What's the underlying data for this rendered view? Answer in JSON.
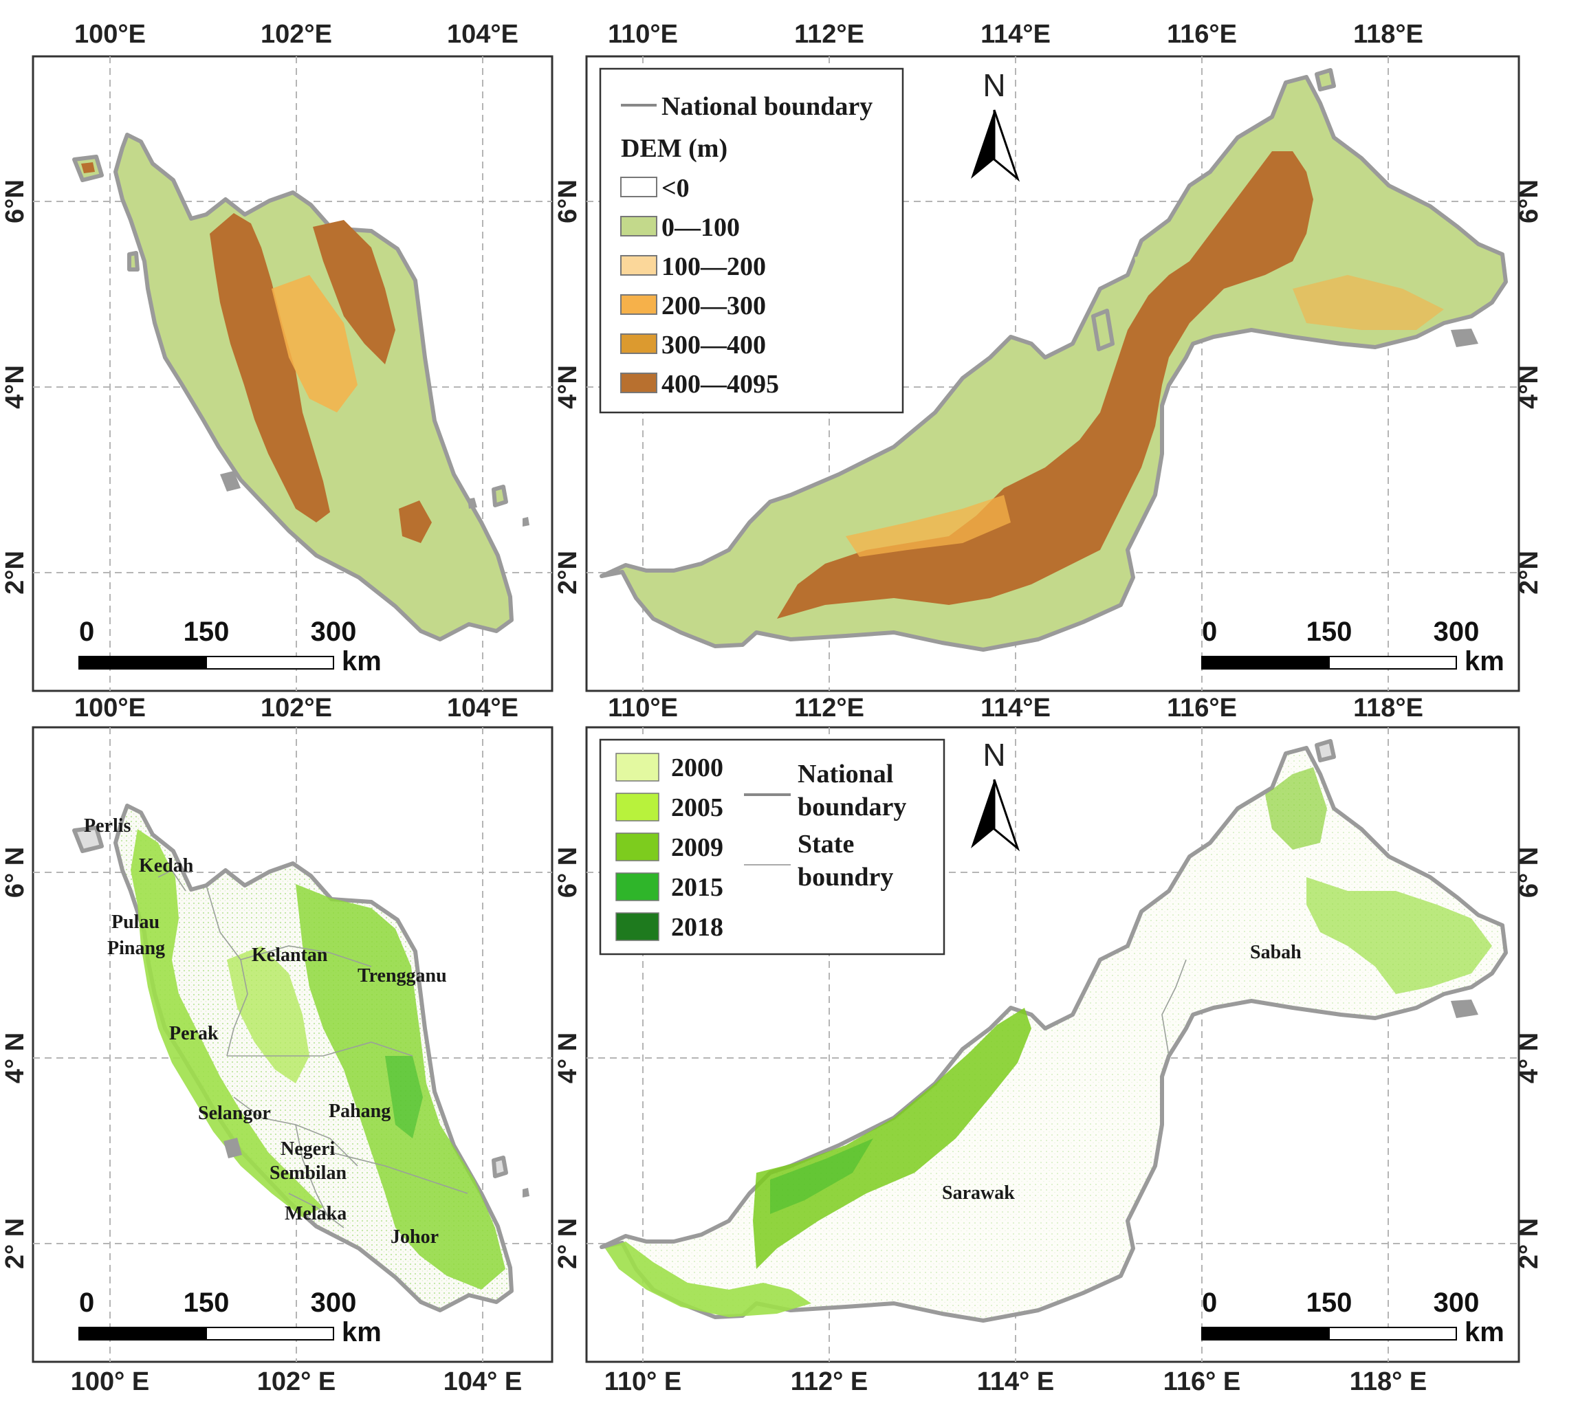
{
  "panels": {
    "top_left": {
      "x_ticks": [
        "100°E",
        "102°E",
        "104°E"
      ],
      "y_ticks_left": [
        "6°N",
        "4°N",
        "2°N"
      ],
      "scale": {
        "labels": [
          "0",
          "150",
          "300"
        ],
        "unit": "km"
      }
    },
    "top_right": {
      "x_ticks_top": [
        "110°E",
        "112°E",
        "114°E",
        "116°E",
        "118°E"
      ],
      "x_ticks_bottom": [
        "110°E",
        "112°E",
        "114°E",
        "116°E",
        "118°E"
      ],
      "y_ticks_left": [
        "6°N",
        "4°N",
        "2°N"
      ],
      "y_ticks_right": [
        "6°N",
        "4°N",
        "2°N"
      ],
      "north": "N",
      "scale": {
        "labels": [
          "0",
          "150",
          "300"
        ],
        "unit": "km"
      },
      "legend": {
        "boundary_label": "National boundary",
        "dem_title": "DEM (m)",
        "classes": [
          {
            "label": "<0",
            "color": "#ffffff"
          },
          {
            "label": "0—100",
            "color": "#c3d98b"
          },
          {
            "label": "100—200",
            "color": "#fbd79a"
          },
          {
            "label": "200—300",
            "color": "#f6b14a"
          },
          {
            "label": "300—400",
            "color": "#dc9a2f"
          },
          {
            "label": "400—4095",
            "color": "#b8702f"
          }
        ]
      }
    },
    "bottom_left": {
      "x_ticks": [
        "100° E",
        "102° E",
        "104° E"
      ],
      "y_ticks_left": [
        "6° N",
        "4° N",
        "2° N"
      ],
      "scale": {
        "labels": [
          "0",
          "150",
          "300"
        ],
        "unit": "km"
      },
      "states": [
        "Perlis",
        "Kedah",
        "Pulau",
        "Pinang",
        "Kelantan",
        "Trengganu",
        "Perak",
        "Selangor",
        "Pahang",
        "Negeri",
        "Sembilan",
        "Melaka",
        "Johor"
      ]
    },
    "bottom_right": {
      "x_ticks": [
        "110° E",
        "112° E",
        "114° E",
        "116° E",
        "118° E"
      ],
      "y_ticks_left": [
        "6° N",
        "4° N",
        "2° N"
      ],
      "y_ticks_right": [
        "6° N",
        "4° N",
        "2° N"
      ],
      "north": "N",
      "scale": {
        "labels": [
          "0",
          "150",
          "300"
        ],
        "unit": "km"
      },
      "regions": [
        "Sabah",
        "Sarawak"
      ],
      "legend": {
        "years": [
          {
            "label": "2000",
            "color": "#e3f9a0"
          },
          {
            "label": "2005",
            "color": "#b8f23c"
          },
          {
            "label": "2009",
            "color": "#7dcc1e"
          },
          {
            "label": "2015",
            "color": "#2fb52a"
          },
          {
            "label": "2018",
            "color": "#1e7a1e"
          }
        ],
        "national": [
          "National",
          "boundary"
        ],
        "state": [
          "State",
          "boundry"
        ]
      }
    }
  }
}
